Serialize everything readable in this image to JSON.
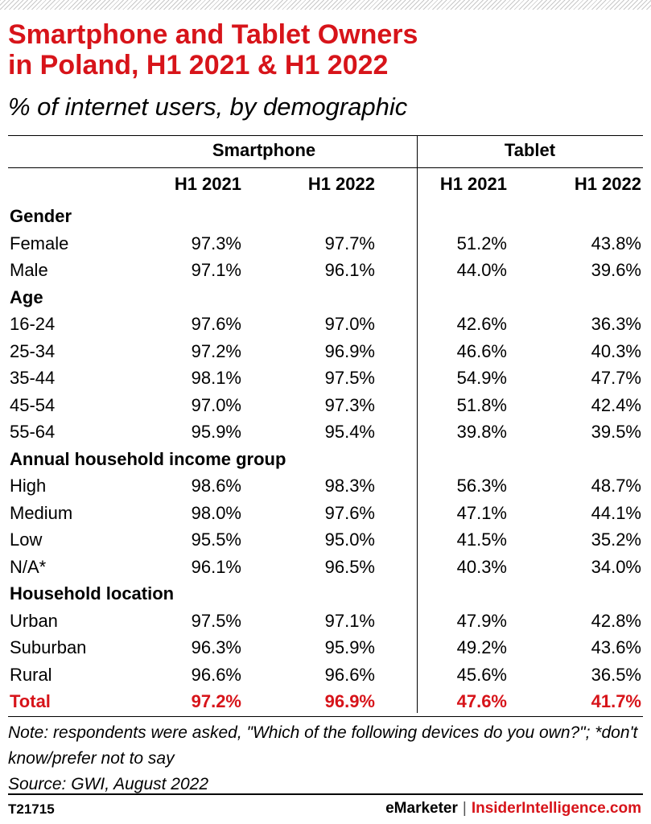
{
  "header": {
    "title_line1": "Smartphone and Tablet Owners",
    "title_line2": "in Poland, H1 2021 & H1 2022",
    "subtitle": "% of internet users, by demographic"
  },
  "chart_data": {
    "type": "table",
    "column_groups": [
      "Smartphone",
      "Tablet"
    ],
    "columns": [
      "H1 2021",
      "H1 2022",
      "H1 2021",
      "H1 2022"
    ],
    "sections": [
      {
        "name": "Gender",
        "rows": [
          {
            "label": "Female",
            "values": [
              "97.3%",
              "97.7%",
              "51.2%",
              "43.8%"
            ]
          },
          {
            "label": "Male",
            "values": [
              "97.1%",
              "96.1%",
              "44.0%",
              "39.6%"
            ]
          }
        ]
      },
      {
        "name": "Age",
        "rows": [
          {
            "label": "16-24",
            "values": [
              "97.6%",
              "97.0%",
              "42.6%",
              "36.3%"
            ]
          },
          {
            "label": "25-34",
            "values": [
              "97.2%",
              "96.9%",
              "46.6%",
              "40.3%"
            ]
          },
          {
            "label": "35-44",
            "values": [
              "98.1%",
              "97.5%",
              "54.9%",
              "47.7%"
            ]
          },
          {
            "label": "45-54",
            "values": [
              "97.0%",
              "97.3%",
              "51.8%",
              "42.4%"
            ]
          },
          {
            "label": "55-64",
            "values": [
              "95.9%",
              "95.4%",
              "39.8%",
              "39.5%"
            ]
          }
        ]
      },
      {
        "name": "Annual household income group",
        "rows": [
          {
            "label": "High",
            "values": [
              "98.6%",
              "98.3%",
              "56.3%",
              "48.7%"
            ]
          },
          {
            "label": "Medium",
            "values": [
              "98.0%",
              "97.6%",
              "47.1%",
              "44.1%"
            ]
          },
          {
            "label": "Low",
            "values": [
              "95.5%",
              "95.0%",
              "41.5%",
              "35.2%"
            ]
          },
          {
            "label": "N/A*",
            "values": [
              "96.1%",
              "96.5%",
              "40.3%",
              "34.0%"
            ]
          }
        ]
      },
      {
        "name": "Household location",
        "rows": [
          {
            "label": "Urban",
            "values": [
              "97.5%",
              "97.1%",
              "47.9%",
              "42.8%"
            ]
          },
          {
            "label": "Suburban",
            "values": [
              "96.3%",
              "95.9%",
              "49.2%",
              "43.6%"
            ]
          },
          {
            "label": "Rural",
            "values": [
              "96.6%",
              "96.6%",
              "45.6%",
              "36.5%"
            ]
          }
        ]
      }
    ],
    "total": {
      "label": "Total",
      "values": [
        "97.2%",
        "96.9%",
        "47.6%",
        "41.7%"
      ]
    }
  },
  "notes": {
    "note": "Note: respondents were asked, \"Which of the following devices do you own?\"; *don't know/prefer not to say",
    "source": "Source: GWI, August 2022"
  },
  "footer": {
    "id": "T21715",
    "brand1": "eMarketer",
    "separator": "|",
    "brand2": "InsiderIntelligence.com"
  },
  "colors": {
    "accent": "#d7141a",
    "text": "#000000"
  }
}
